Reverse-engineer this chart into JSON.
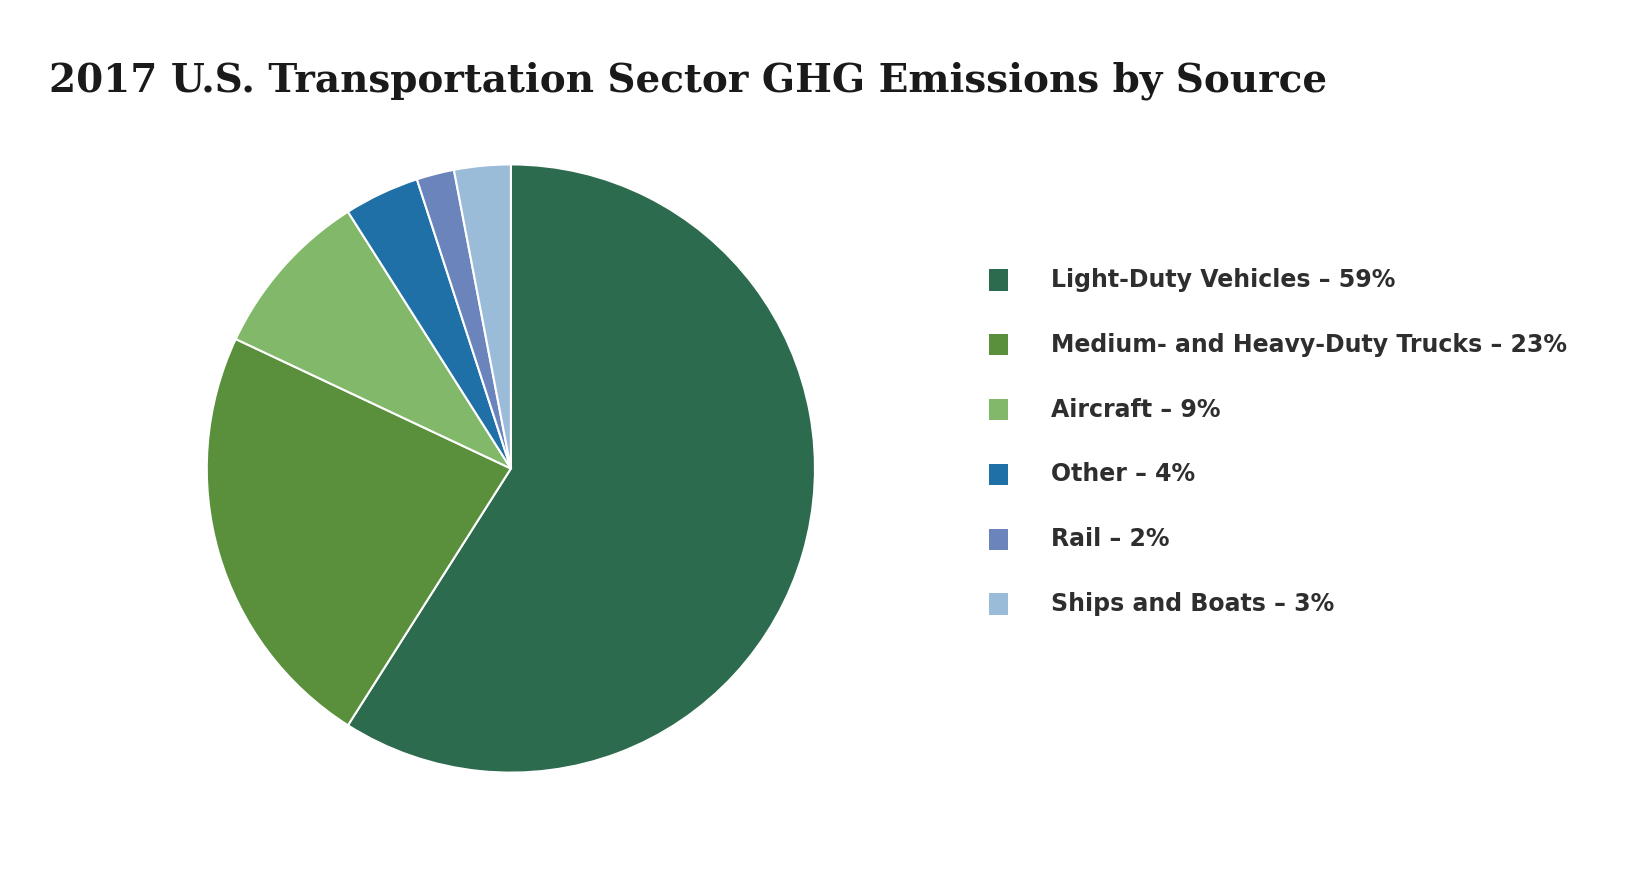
{
  "title": "2017 U.S. Transportation Sector GHG Emissions by Source",
  "slices": [
    {
      "label": "Light-Duty Vehicles – 59%",
      "value": 59,
      "color": "#2d6b4e"
    },
    {
      "label": "Medium- and Heavy-Duty Trucks – 23%",
      "value": 23,
      "color": "#5a8f3c"
    },
    {
      "label": "Aircraft – 9%",
      "value": 9,
      "color": "#82b86a"
    },
    {
      "label": "Other – 4%",
      "value": 4,
      "color": "#2070a8"
    },
    {
      "label": "Rail – 2%",
      "value": 2,
      "color": "#6b85bc"
    },
    {
      "label": "Ships and Boats – 3%",
      "value": 3,
      "color": "#9bbcd8"
    }
  ],
  "background_color": "#ffffff",
  "title_color": "#1a1a1a",
  "title_fontsize": 28,
  "legend_fontsize": 17,
  "text_color": "#2e2e2e",
  "startangle": 90,
  "wedge_edge_color": "white",
  "wedge_linewidth": 1.5
}
